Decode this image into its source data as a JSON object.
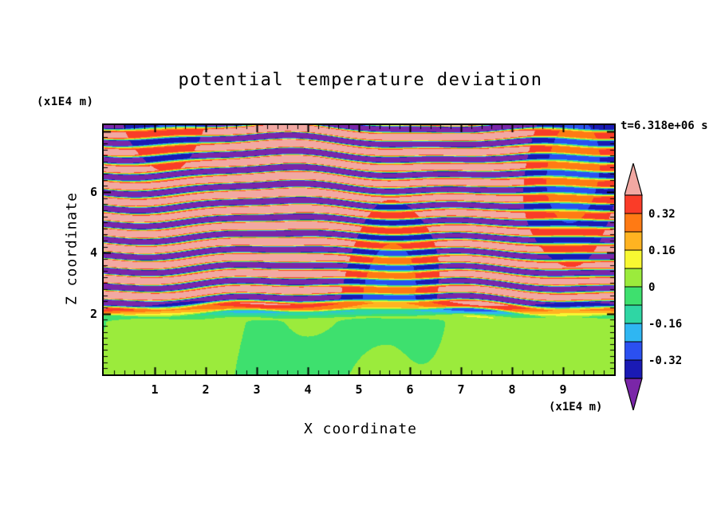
{
  "chart_data": {
    "type": "heatmap",
    "title": "potential temperature deviation",
    "time_annotation": "t=6.318e+06 s",
    "x_axis": {
      "label": "X coordinate",
      "units_label": "(x1E4 m)",
      "min": 0,
      "max": 10,
      "major_ticks": [
        1,
        2,
        3,
        4,
        5,
        6,
        7,
        8,
        9
      ],
      "minor_step": 0.2
    },
    "z_axis": {
      "label": "Z coordinate",
      "units_label": "(x1E4 m)",
      "min": 0,
      "max": 8.2,
      "major_ticks": [
        2,
        4,
        6
      ],
      "minor_step": 0.2
    },
    "colorbar": {
      "tick_labels": [
        "0.32",
        "0.16",
        "0",
        "-0.16",
        "-0.32"
      ],
      "tick_values": [
        0.32,
        0.16,
        0,
        -0.16,
        -0.32
      ],
      "band_boundaries": [
        -0.4,
        -0.32,
        -0.24,
        -0.16,
        -0.08,
        0,
        0.08,
        0.16,
        0.24,
        0.32,
        0.4
      ],
      "band_colors": [
        "#1A1AB4",
        "#2B50F0",
        "#2FB6F2",
        "#2FD6A4",
        "#3EE06E",
        "#9BEB3C",
        "#F8F832",
        "#FFB321",
        "#FF7A14",
        "#FA3C28"
      ],
      "over_color": "#F2A8A2",
      "under_color": "#7A26A8"
    },
    "field": {
      "description": "Layered wave field of potential temperature deviation: strongly saturated alternating positive (salmon, >0.4) and negative (purple, <-0.4) horizontal stripes above z~2x1E4 m with thin rainbow transition edges, and a near-zero (green/chartreuse, -0.08..0.08) swirling region below z~2x1E4 m",
      "stripe_wavelength_z": 0.52,
      "stripe_region_min_z": 1.85,
      "saturation_amplitude": 0.62,
      "lower_region_amplitude": 0.055
    }
  }
}
